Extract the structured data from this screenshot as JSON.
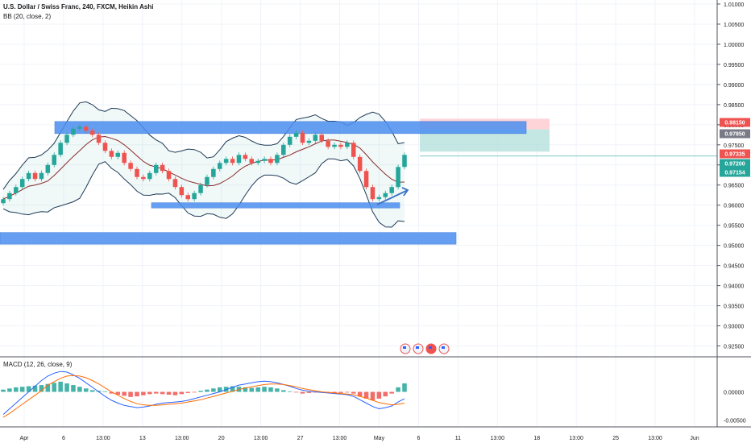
{
  "header": {
    "title": "U.S. Dollar / Swiss Franc, 240, FXCM, Heikin Ashi",
    "bb_label": "BB (20, close, 2)",
    "macd_label": "MACD (12, 26, close, 9)"
  },
  "colors": {
    "up": "#26a69a",
    "down": "#ef5350",
    "bb_line": "#1f3a57",
    "bb_fill": "#26a69a",
    "zone": "#4c8ff0",
    "macd_line": "#2962ff",
    "signal_line": "#ff6d00",
    "target_fill": "#b2dfdb",
    "stop_fill": "#ffcdd2"
  },
  "chart_data": [
    {
      "type": "candlestick",
      "name": "Heikin Ashi USD/CHF 240",
      "ylim": [
        0.9225,
        1.011
      ],
      "price_ticks": [
        "1.01000",
        "1.00500",
        "1.00000",
        "0.99500",
        "0.99000",
        "0.98500",
        "0.98000",
        "0.97500",
        "0.97000",
        "0.96500",
        "0.96000",
        "0.95500",
        "0.95000",
        "0.94500",
        "0.94000",
        "0.93500",
        "0.93000",
        "0.92500"
      ],
      "x_ticks": [
        "Apr",
        "6",
        "13:00",
        "13",
        "13:00",
        "20",
        "13:00",
        "27",
        "13:00",
        "May",
        "6",
        "11",
        "13:00",
        "18",
        "13:00",
        "25",
        "13:00",
        "Jun"
      ],
      "closes": [
        0.9615,
        0.963,
        0.9645,
        0.9665,
        0.968,
        0.9665,
        0.968,
        0.97,
        0.9725,
        0.9755,
        0.9775,
        0.979,
        0.9795,
        0.9785,
        0.9775,
        0.9755,
        0.9735,
        0.972,
        0.973,
        0.9705,
        0.969,
        0.967,
        0.9665,
        0.968,
        0.97,
        0.9685,
        0.9665,
        0.9645,
        0.9625,
        0.9615,
        0.963,
        0.965,
        0.967,
        0.969,
        0.9705,
        0.9715,
        0.9705,
        0.9725,
        0.9715,
        0.9705,
        0.971,
        0.9715,
        0.9705,
        0.9725,
        0.975,
        0.977,
        0.978,
        0.9755,
        0.976,
        0.9775,
        0.976,
        0.9745,
        0.975,
        0.9745,
        0.9755,
        0.972,
        0.9685,
        0.9645,
        0.9615,
        0.962,
        0.963,
        0.9645,
        0.9695,
        0.9725
      ],
      "price_tags": [
        {
          "label": "0.98150",
          "color": "#ef5350"
        },
        {
          "label": "0.97850",
          "color": "#787b86"
        },
        {
          "label": "0.97335",
          "color": "#ef5350"
        },
        {
          "label": "0.97200",
          "color": "#26a69a"
        },
        {
          "label": "0.97154",
          "color": "#26a69a"
        }
      ],
      "zones": [
        {
          "name": "resistance",
          "from": 0.9778,
          "to": 0.9808
        },
        {
          "name": "support",
          "from": 0.9593,
          "to": 0.9606
        },
        {
          "name": "lower-support",
          "from": 0.9503,
          "to": 0.9532
        }
      ],
      "position": {
        "target_top": 0.9815,
        "entry": 0.97885,
        "stop_bottom": 0.9733
      }
    },
    {
      "type": "macd",
      "name": "MACD (12, 26, close, 9)",
      "ylim": [
        -0.0062,
        0.0062
      ],
      "y_ticks": [
        "0.00000",
        "-0.00500"
      ],
      "histogram": [
        0.0004,
        0.0006,
        0.0008,
        0.0009,
        0.001,
        0.0011,
        0.0012,
        0.0014,
        0.0016,
        0.0018,
        0.0015,
        0.0012,
        0.0009,
        0.0006,
        0.0003,
        0.0002,
        0.0001,
        -0.0003,
        -0.0005,
        -0.0007,
        -0.0009,
        -0.0008,
        -0.0006,
        -0.0004,
        -0.0003,
        -0.0004,
        -0.0005,
        -0.0006,
        -0.0004,
        -0.0002,
        -0.0001,
        0.0002,
        0.0004,
        0.0006,
        0.0008,
        0.0009,
        0.001,
        0.0009,
        0.0008,
        0.0007,
        0.0008,
        0.0009,
        0.0008,
        0.0006,
        0.0003,
        0.0001,
        -0.0001,
        -0.0003,
        -0.0002,
        -0.0001,
        0.0,
        -0.0001,
        -0.0003,
        -0.0002,
        -0.0001,
        -0.0003,
        -0.0008,
        -0.0012,
        -0.0015,
        -0.0012,
        -0.0008,
        -0.0003,
        0.0008,
        0.0015
      ],
      "macd": [
        -0.004,
        -0.003,
        -0.002,
        -0.001,
        0.0,
        0.001,
        0.002,
        0.0028,
        0.0033,
        0.0036,
        0.0035,
        0.003,
        0.0024,
        0.0016,
        0.0008,
        0.0,
        -0.0008,
        -0.0015,
        -0.002,
        -0.0024,
        -0.0026,
        -0.0028,
        -0.0027,
        -0.0025,
        -0.0022,
        -0.002,
        -0.0019,
        -0.0018,
        -0.0017,
        -0.0015,
        -0.0012,
        -0.0009,
        -0.0006,
        -0.0003,
        0.0,
        0.0004,
        0.0008,
        0.0012,
        0.0014,
        0.0016,
        0.0018,
        0.0019,
        0.0018,
        0.0016,
        0.0013,
        0.001,
        0.0006,
        0.0003,
        0.0001,
        0.0,
        -0.0001,
        -0.0002,
        -0.0003,
        -0.0004,
        -0.0005,
        -0.0008,
        -0.0014,
        -0.002,
        -0.0026,
        -0.003,
        -0.0028,
        -0.0025,
        -0.0018,
        -0.0012
      ],
      "signal": [
        -0.0045,
        -0.0038,
        -0.003,
        -0.0022,
        -0.0014,
        -0.0006,
        0.0002,
        0.0012,
        0.0018,
        0.0024,
        0.0028,
        0.0029,
        0.0028,
        0.0025,
        0.002,
        0.0014,
        0.0007,
        0.0,
        -0.0006,
        -0.0012,
        -0.0017,
        -0.0021,
        -0.0023,
        -0.0024,
        -0.0024,
        -0.0023,
        -0.0022,
        -0.0021,
        -0.002,
        -0.0018,
        -0.0016,
        -0.0014,
        -0.0011,
        -0.0008,
        -0.0005,
        -0.0002,
        0.0001,
        0.0004,
        0.0007,
        0.0009,
        0.0011,
        0.0013,
        0.0014,
        0.0014,
        0.0013,
        0.0011,
        0.0009,
        0.0006,
        0.0004,
        0.0002,
        0.0,
        -0.0001,
        -0.0002,
        -0.0003,
        -0.0004,
        -0.0005,
        -0.0008,
        -0.0011,
        -0.0015,
        -0.0019,
        -0.0021,
        -0.0023,
        -0.0022,
        -0.002
      ]
    }
  ]
}
